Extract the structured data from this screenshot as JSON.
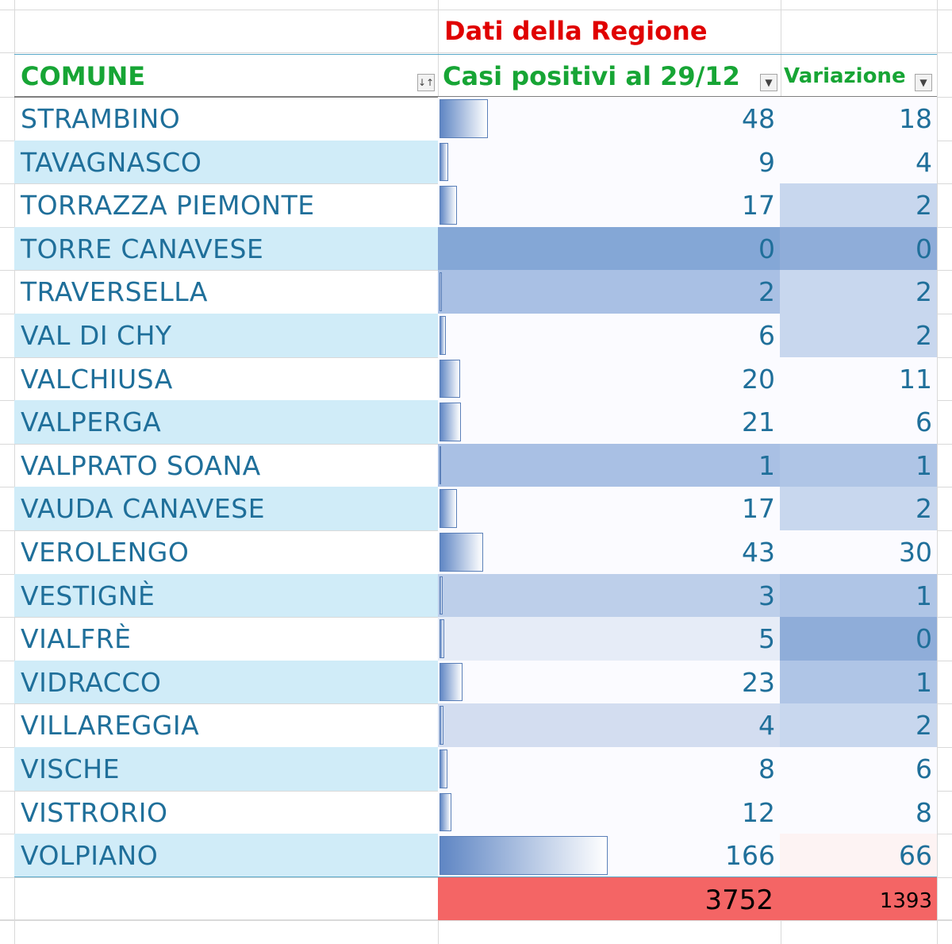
{
  "banner": "Dati della Regione",
  "headers": {
    "comune": "COMUNE",
    "casi": "Casi positivi al 29/12",
    "variazione": "Variazione",
    "filter_sort_icon": "sort-filter-icon",
    "filter_icon": "dropdown-filter-icon"
  },
  "colors": {
    "header_green": "#17a535",
    "banner_red": "#e00000",
    "row_text": "#1f6f9a",
    "alt_row": "#d0ecf8",
    "total_bg": "#f46565"
  },
  "rows": [
    {
      "comune": "STRAMBINO",
      "casi": 48,
      "var": 18,
      "casi_bg": "#fbfbff",
      "var_bg": "#fbfbff"
    },
    {
      "comune": "TAVAGNASCO",
      "casi": 9,
      "var": 4,
      "casi_bg": "#fbfbff",
      "var_bg": "#fbfbff"
    },
    {
      "comune": "TORRAZZA PIEMONTE",
      "casi": 17,
      "var": 2,
      "casi_bg": "#fbfbff",
      "var_bg": "#c8d7ee"
    },
    {
      "comune": "TORRE CANAVESE",
      "casi": 0,
      "var": 0,
      "casi_bg": "#84a7d6",
      "var_bg": "#8fadd9"
    },
    {
      "comune": "TRAVERSELLA",
      "casi": 2,
      "var": 2,
      "casi_bg": "#a9c0e4",
      "var_bg": "#c8d7ee"
    },
    {
      "comune": "VAL DI CHY",
      "casi": 6,
      "var": 2,
      "casi_bg": "#fbfbff",
      "var_bg": "#c8d7ee"
    },
    {
      "comune": "VALCHIUSA",
      "casi": 20,
      "var": 11,
      "casi_bg": "#fbfbff",
      "var_bg": "#fbfbff"
    },
    {
      "comune": "VALPERGA",
      "casi": 21,
      "var": 6,
      "casi_bg": "#fbfbff",
      "var_bg": "#fbfbff"
    },
    {
      "comune": "VALPRATO SOANA",
      "casi": 1,
      "var": 1,
      "casi_bg": "#a9c0e4",
      "var_bg": "#afc5e6"
    },
    {
      "comune": "VAUDA CANAVESE",
      "casi": 17,
      "var": 2,
      "casi_bg": "#fbfbff",
      "var_bg": "#c8d7ee"
    },
    {
      "comune": "VEROLENGO",
      "casi": 43,
      "var": 30,
      "casi_bg": "#fbfbff",
      "var_bg": "#fbfbff"
    },
    {
      "comune": "VESTIGNÈ",
      "casi": 3,
      "var": 1,
      "casi_bg": "#bdcfea",
      "var_bg": "#afc5e6"
    },
    {
      "comune": "VIALFRÈ",
      "casi": 5,
      "var": 0,
      "casi_bg": "#e6ecf7",
      "var_bg": "#8fadd9"
    },
    {
      "comune": "VIDRACCO",
      "casi": 23,
      "var": 1,
      "casi_bg": "#fbfbff",
      "var_bg": "#afc5e6"
    },
    {
      "comune": "VILLAREGGIA",
      "casi": 4,
      "var": 2,
      "casi_bg": "#d3ddf0",
      "var_bg": "#c8d7ee"
    },
    {
      "comune": "VISCHE",
      "casi": 8,
      "var": 6,
      "casi_bg": "#fbfbff",
      "var_bg": "#fbfbff"
    },
    {
      "comune": "VISTRORIO",
      "casi": 12,
      "var": 8,
      "casi_bg": "#fbfbff",
      "var_bg": "#fbfbff"
    },
    {
      "comune": "VOLPIANO",
      "casi": 166,
      "var": 66,
      "casi_bg": "#fbfbff",
      "var_bg": "#fdf3f3"
    }
  ],
  "totals": {
    "casi": "3752",
    "var": "1393"
  }
}
